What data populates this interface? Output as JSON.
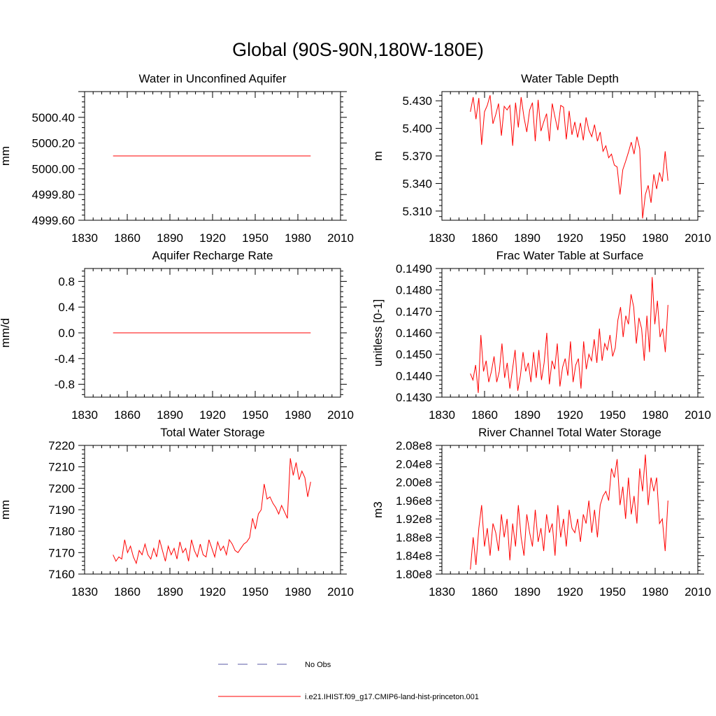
{
  "page": {
    "title": "Global (90S-90N,180W-180E)"
  },
  "legend": {
    "items": [
      {
        "label": "No Obs",
        "color": "#5a5aa6",
        "style": "dashed"
      },
      {
        "label": "i.e21.IHIST.f09_g17.CMIP6-land-hist-princeton.001",
        "color": "#ff0000",
        "style": "solid"
      }
    ]
  },
  "chart_data": [
    {
      "type": "line",
      "title": "Water in Unconfined Aquifer",
      "ylabel": "mm",
      "xlim": [
        1830,
        2010
      ],
      "ylim": [
        4999.6,
        5000.6
      ],
      "xticks": [
        1830,
        1860,
        1890,
        1920,
        1950,
        1980,
        2010
      ],
      "yticks": [
        4999.6,
        4999.8,
        5000.0,
        5000.2,
        5000.4
      ],
      "ytick_labels": [
        "4999.60",
        "4999.80",
        "5000.00",
        "5000.20",
        "5000.40"
      ],
      "series": [
        {
          "x_start": 1850,
          "x_end": 1989,
          "color": "#ff0000",
          "values": [
            5000.1,
            5000.1,
            5000.1,
            5000.1,
            5000.1,
            5000.1,
            5000.1,
            5000.1,
            5000.1,
            5000.1,
            5000.1,
            5000.1,
            5000.1,
            5000.1,
            5000.1,
            5000.1,
            5000.1,
            5000.1,
            5000.1,
            5000.1,
            5000.1,
            5000.1,
            5000.1,
            5000.1,
            5000.1,
            5000.1,
            5000.1,
            5000.1,
            5000.1,
            5000.1,
            5000.1,
            5000.1,
            5000.1,
            5000.1,
            5000.1,
            5000.1,
            5000.1,
            5000.1,
            5000.1,
            5000.1,
            5000.1,
            5000.1,
            5000.1,
            5000.1,
            5000.1,
            5000.1,
            5000.1,
            5000.1,
            5000.1,
            5000.1,
            5000.1,
            5000.1,
            5000.1,
            5000.1,
            5000.1,
            5000.1,
            5000.1,
            5000.1,
            5000.1,
            5000.1,
            5000.1,
            5000.1,
            5000.1,
            5000.1,
            5000.1,
            5000.1,
            5000.1,
            5000.1,
            5000.1,
            5000.1,
            5000.1
          ]
        }
      ]
    },
    {
      "type": "line",
      "title": "Water Table Depth",
      "ylabel": "m",
      "xlim": [
        1830,
        2010
      ],
      "ylim": [
        5.3,
        5.44
      ],
      "xticks": [
        1830,
        1860,
        1890,
        1920,
        1950,
        1980,
        2010
      ],
      "yticks": [
        5.31,
        5.34,
        5.37,
        5.4,
        5.43
      ],
      "ytick_labels": [
        "5.310",
        "5.340",
        "5.370",
        "5.400",
        "5.430"
      ],
      "series": [
        {
          "x_start": 1850,
          "x_end": 1989,
          "color": "#ff0000",
          "values": [
            5.418,
            5.434,
            5.41,
            5.433,
            5.382,
            5.418,
            5.425,
            5.436,
            5.405,
            5.415,
            5.427,
            5.392,
            5.424,
            5.42,
            5.425,
            5.381,
            5.428,
            5.401,
            5.434,
            5.412,
            5.396,
            5.42,
            5.428,
            5.386,
            5.431,
            5.397,
            5.407,
            5.416,
            5.386,
            5.427,
            5.412,
            5.398,
            5.425,
            5.423,
            5.388,
            5.419,
            5.393,
            5.407,
            5.39,
            5.406,
            5.387,
            5.412,
            5.398,
            5.391,
            5.404,
            5.386,
            5.396,
            5.375,
            5.381,
            5.368,
            5.372,
            5.36,
            5.358,
            5.328,
            5.355,
            5.364,
            5.374,
            5.385,
            5.372,
            5.391,
            5.378,
            5.302,
            5.328,
            5.338,
            5.319,
            5.35,
            5.334,
            5.352,
            5.342,
            5.375,
            5.343
          ]
        }
      ]
    },
    {
      "type": "line",
      "title": "Aquifer Recharge Rate",
      "ylabel": "mm/d",
      "xlim": [
        1830,
        2010
      ],
      "ylim": [
        -1.0,
        1.0
      ],
      "xticks": [
        1830,
        1860,
        1890,
        1920,
        1950,
        1980,
        2010
      ],
      "yticks": [
        -0.8,
        -0.4,
        0.0,
        0.4,
        0.8
      ],
      "ytick_labels": [
        "-0.8",
        "-0.4",
        "0.0",
        "0.4",
        "0.8"
      ],
      "series": [
        {
          "x_start": 1850,
          "x_end": 1989,
          "color": "#ff0000",
          "values": [
            0.0,
            0.0,
            0.0,
            0.0,
            0.0,
            0.0,
            0.0,
            0.0,
            0.0,
            0.0,
            0.0,
            0.0,
            0.0,
            0.0,
            0.0,
            0.0,
            0.0,
            0.0,
            0.0,
            0.0,
            0.0,
            0.0,
            0.0,
            0.0,
            0.0,
            0.0,
            0.0,
            0.0,
            0.0,
            0.0,
            0.0,
            0.0,
            0.0,
            0.0,
            0.0,
            0.0,
            0.0,
            0.0,
            0.0,
            0.0,
            0.0,
            0.0,
            0.0,
            0.0,
            0.0,
            0.0,
            0.0,
            0.0,
            0.0,
            0.0,
            0.0,
            0.0,
            0.0,
            0.0,
            0.0,
            0.0,
            0.0,
            0.0,
            0.0,
            0.0,
            0.0,
            0.0,
            0.0,
            0.0,
            0.0,
            0.0,
            0.0,
            0.0,
            0.0,
            0.0,
            0.0
          ]
        }
      ]
    },
    {
      "type": "line",
      "title": "Frac Water Table at Surface",
      "ylabel": "unitless [0-1]",
      "xlim": [
        1830,
        2010
      ],
      "ylim": [
        0.143,
        0.149
      ],
      "xticks": [
        1830,
        1860,
        1890,
        1920,
        1950,
        1980,
        2010
      ],
      "yticks": [
        0.143,
        0.144,
        0.145,
        0.146,
        0.147,
        0.148,
        0.149
      ],
      "ytick_labels": [
        "0.1430",
        "0.1440",
        "0.1450",
        "0.1460",
        "0.1470",
        "0.1480",
        "0.1490"
      ],
      "series": [
        {
          "x_start": 1850,
          "x_end": 1989,
          "color": "#ff0000",
          "values": [
            0.1441,
            0.1438,
            0.1445,
            0.1432,
            0.1459,
            0.1442,
            0.1447,
            0.1437,
            0.1442,
            0.1449,
            0.1437,
            0.1442,
            0.1455,
            0.1439,
            0.1446,
            0.1434,
            0.1443,
            0.1452,
            0.1433,
            0.144,
            0.1451,
            0.1442,
            0.1446,
            0.1437,
            0.1451,
            0.1439,
            0.1452,
            0.1438,
            0.1446,
            0.146,
            0.1436,
            0.1447,
            0.1443,
            0.1455,
            0.1435,
            0.1444,
            0.1448,
            0.144,
            0.1456,
            0.1437,
            0.1445,
            0.1448,
            0.1434,
            0.1456,
            0.1443,
            0.145,
            0.1447,
            0.1457,
            0.1446,
            0.1462,
            0.1447,
            0.1455,
            0.1452,
            0.1459,
            0.1449,
            0.1453,
            0.1466,
            0.1472,
            0.1458,
            0.1468,
            0.1464,
            0.1478,
            0.1472,
            0.1455,
            0.1467,
            0.1462,
            0.1447,
            0.1468,
            0.1451,
            0.1486,
            0.1464,
            0.1475,
            0.1458,
            0.1462,
            0.1451,
            0.1473
          ]
        }
      ]
    },
    {
      "type": "line",
      "title": "Total Water Storage",
      "ylabel": "mm",
      "xlim": [
        1830,
        2010
      ],
      "ylim": [
        7160,
        7220
      ],
      "xticks": [
        1830,
        1860,
        1890,
        1920,
        1950,
        1980,
        2010
      ],
      "yticks": [
        7160,
        7170,
        7180,
        7190,
        7200,
        7210,
        7220
      ],
      "ytick_labels": [
        "7160",
        "7170",
        "7180",
        "7190",
        "7200",
        "7210",
        "7220"
      ],
      "series": [
        {
          "x_start": 1850,
          "x_end": 1989,
          "color": "#ff0000",
          "values": [
            7169,
            7166,
            7168,
            7167,
            7176,
            7170,
            7173,
            7168,
            7165,
            7171,
            7169,
            7174,
            7169,
            7167,
            7172,
            7168,
            7176,
            7171,
            7166,
            7173,
            7169,
            7172,
            7167,
            7175,
            7170,
            7172,
            7166,
            7176,
            7171,
            7168,
            7174,
            7169,
            7168,
            7176,
            7172,
            7168,
            7175,
            7171,
            7173,
            7169,
            7176,
            7174,
            7171,
            7170,
            7172,
            7174,
            7175,
            7177,
            7186,
            7181,
            7188,
            7190,
            7202,
            7195,
            7196,
            7193,
            7191,
            7188,
            7192,
            7189,
            7186,
            7214,
            7206,
            7212,
            7204,
            7208,
            7205,
            7196,
            7203
          ]
        }
      ]
    },
    {
      "type": "line",
      "title": "River Channel Total Water Storage",
      "ylabel": "m3",
      "xlim": [
        1830,
        2010
      ],
      "ylim": [
        180000000,
        208000000
      ],
      "xticks": [
        1830,
        1860,
        1890,
        1920,
        1950,
        1980,
        2010
      ],
      "yticks": [
        180000000,
        184000000,
        188000000,
        192000000,
        196000000,
        200000000,
        204000000,
        208000000
      ],
      "ytick_labels": [
        "1.80e8",
        "1.84e8",
        "1.88e8",
        "1.92e8",
        "1.96e8",
        "2.00e8",
        "2.04e8",
        "2.08e8"
      ],
      "series": [
        {
          "x_start": 1850,
          "x_end": 1989,
          "color": "#ff0000",
          "values": [
            181000000,
            188000000,
            182000000,
            190000000,
            195000000,
            186000000,
            190000000,
            184000000,
            191000000,
            189000000,
            185000000,
            193000000,
            188000000,
            192000000,
            183000000,
            191000000,
            186000000,
            195000000,
            188000000,
            184000000,
            193000000,
            189000000,
            186000000,
            194000000,
            187000000,
            190000000,
            185000000,
            193000000,
            189000000,
            191000000,
            184000000,
            195000000,
            188000000,
            192000000,
            186000000,
            194000000,
            190000000,
            189000000,
            192000000,
            187000000,
            193000000,
            191000000,
            196000000,
            189000000,
            194000000,
            188000000,
            195000000,
            197000000,
            198000000,
            196000000,
            203000000,
            201000000,
            205000000,
            195000000,
            199000000,
            192000000,
            201000000,
            193000000,
            197000000,
            191000000,
            203000000,
            198000000,
            206000000,
            195000000,
            201000000,
            198000000,
            201000000,
            191000000,
            192000000,
            185000000,
            196000000
          ]
        }
      ]
    }
  ]
}
